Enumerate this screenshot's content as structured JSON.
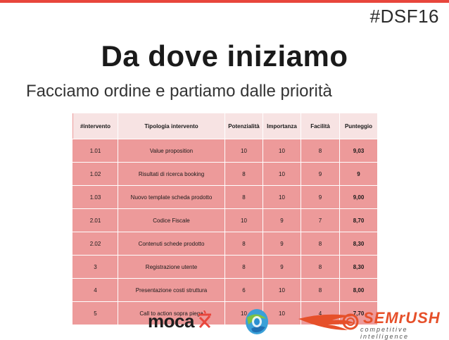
{
  "slide": {
    "hashtag": "#DSF16",
    "title": "Da dove iniziamo",
    "subtitle": "Facciamo ordine e partiamo dalle priorità",
    "accent_color": "#e8463c"
  },
  "table": {
    "headers": [
      "#intervento",
      "Tipologia intervento",
      "Potenzialità",
      "Importanza",
      "Facilità",
      "Punteggio"
    ],
    "rows": [
      [
        "1.01",
        "Value proposition",
        "10",
        "10",
        "8",
        "9,03"
      ],
      [
        "1.02",
        "Risultati di ricerca booking",
        "8",
        "10",
        "9",
        "9"
      ],
      [
        "1.03",
        "Nuovo template scheda prodotto",
        "8",
        "10",
        "9",
        "9,00"
      ],
      [
        "2.01",
        "Codice Fiscale",
        "10",
        "9",
        "7",
        "8,70"
      ],
      [
        "2.02",
        "Contenuti schede prodotto",
        "8",
        "9",
        "8",
        "8,30"
      ],
      [
        "3",
        "Registrazione utente",
        "8",
        "9",
        "8",
        "8,30"
      ],
      [
        "4",
        "Presentazione costi struttura",
        "6",
        "10",
        "8",
        "8,00"
      ],
      [
        "5",
        "Call to action sopra piega",
        "10",
        "10",
        "4",
        "7,70"
      ]
    ],
    "header_color": "#f7e3e3",
    "row_color": "#ed9a9a"
  },
  "logos": {
    "moca": {
      "text": "moca",
      "icon": "moca-mark-icon"
    },
    "globe": {
      "icon": "globe-logo-icon"
    },
    "semrush": {
      "name": "SEMrUSH",
      "tagline": "competitive intelligence",
      "color": "#e6502a",
      "icon": "semrush-flame-icon"
    }
  }
}
